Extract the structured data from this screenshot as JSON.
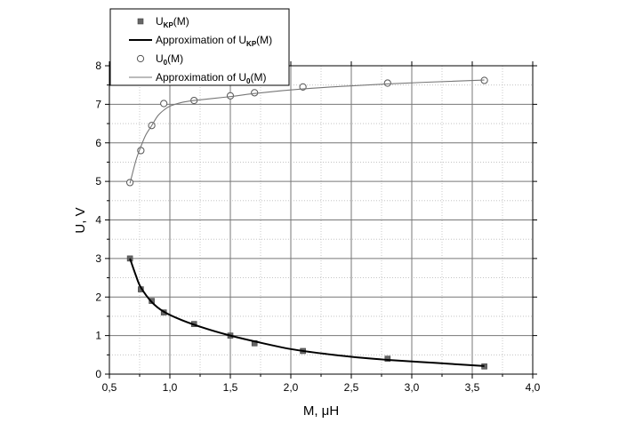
{
  "chart_data": {
    "type": "scatter",
    "xlabel": "M, μH",
    "ylabel": "U, V",
    "xlim": [
      0.5,
      4.0
    ],
    "ylim": [
      0,
      8
    ],
    "x_ticks": [
      "0,5",
      "1,0",
      "1,5",
      "2,0",
      "2,5",
      "3,0",
      "3,5",
      "4,0"
    ],
    "x_tick_values": [
      0.5,
      1.0,
      1.5,
      2.0,
      2.5,
      3.0,
      3.5,
      4.0
    ],
    "y_ticks": [
      "0",
      "1",
      "2",
      "3",
      "4",
      "5",
      "6",
      "7",
      "8"
    ],
    "y_tick_values": [
      0,
      1,
      2,
      3,
      4,
      5,
      6,
      7,
      8
    ],
    "grid": true,
    "legend_position": "top-left",
    "series": [
      {
        "name": "U_KP(M)",
        "kind": "scatter",
        "marker": "filled-square",
        "color": "#666666",
        "points": [
          {
            "x": 0.67,
            "y": 3.0
          },
          {
            "x": 0.76,
            "y": 2.2
          },
          {
            "x": 0.85,
            "y": 1.9
          },
          {
            "x": 0.95,
            "y": 1.6
          },
          {
            "x": 1.2,
            "y": 1.3
          },
          {
            "x": 1.5,
            "y": 1.0
          },
          {
            "x": 1.7,
            "y": 0.8
          },
          {
            "x": 2.1,
            "y": 0.6
          },
          {
            "x": 2.8,
            "y": 0.4
          },
          {
            "x": 3.6,
            "y": 0.2
          }
        ]
      },
      {
        "name": "Approximation of U_KP(M)",
        "kind": "line",
        "color": "#000000",
        "points": [
          {
            "x": 0.67,
            "y": 3.0
          },
          {
            "x": 0.72,
            "y": 2.55
          },
          {
            "x": 0.76,
            "y": 2.25
          },
          {
            "x": 0.85,
            "y": 1.87
          },
          {
            "x": 0.95,
            "y": 1.62
          },
          {
            "x": 1.1,
            "y": 1.4
          },
          {
            "x": 1.3,
            "y": 1.18
          },
          {
            "x": 1.5,
            "y": 1.0
          },
          {
            "x": 1.7,
            "y": 0.85
          },
          {
            "x": 2.0,
            "y": 0.65
          },
          {
            "x": 2.3,
            "y": 0.52
          },
          {
            "x": 2.6,
            "y": 0.42
          },
          {
            "x": 2.8,
            "y": 0.37
          },
          {
            "x": 3.2,
            "y": 0.29
          },
          {
            "x": 3.6,
            "y": 0.21
          }
        ]
      },
      {
        "name": "U_0(M)",
        "kind": "scatter",
        "marker": "open-circle",
        "color": "#555555",
        "points": [
          {
            "x": 0.67,
            "y": 4.97
          },
          {
            "x": 0.76,
            "y": 5.8
          },
          {
            "x": 0.85,
            "y": 6.45
          },
          {
            "x": 0.95,
            "y": 7.02
          },
          {
            "x": 1.2,
            "y": 7.1
          },
          {
            "x": 1.5,
            "y": 7.22
          },
          {
            "x": 1.7,
            "y": 7.3
          },
          {
            "x": 2.1,
            "y": 7.45
          },
          {
            "x": 2.8,
            "y": 7.55
          },
          {
            "x": 3.6,
            "y": 7.62
          }
        ]
      },
      {
        "name": "Approximation of U_0(M)",
        "kind": "line",
        "color": "#777777",
        "points": [
          {
            "x": 0.67,
            "y": 4.95
          },
          {
            "x": 0.72,
            "y": 5.55
          },
          {
            "x": 0.76,
            "y": 5.9
          },
          {
            "x": 0.8,
            "y": 6.2
          },
          {
            "x": 0.85,
            "y": 6.45
          },
          {
            "x": 0.9,
            "y": 6.7
          },
          {
            "x": 0.95,
            "y": 6.85
          },
          {
            "x": 1.0,
            "y": 6.95
          },
          {
            "x": 1.1,
            "y": 7.05
          },
          {
            "x": 1.2,
            "y": 7.1
          },
          {
            "x": 1.5,
            "y": 7.2
          },
          {
            "x": 1.7,
            "y": 7.28
          },
          {
            "x": 2.1,
            "y": 7.4
          },
          {
            "x": 2.8,
            "y": 7.53
          },
          {
            "x": 3.6,
            "y": 7.63
          }
        ]
      }
    ],
    "legend": [
      {
        "base": "U",
        "sub": "KP",
        "suffix": "(M)",
        "prefix": "",
        "symbol": "filled-square"
      },
      {
        "base": "U",
        "sub": "KP",
        "suffix": "(M)",
        "prefix": "Approximation of ",
        "symbol": "thick-line"
      },
      {
        "base": "U",
        "sub": "0",
        "suffix": "(M)",
        "prefix": "",
        "symbol": "open-circle"
      },
      {
        "base": "U",
        "sub": "0",
        "suffix": "(M)",
        "prefix": "Approximation of ",
        "symbol": "thin-line"
      }
    ]
  }
}
